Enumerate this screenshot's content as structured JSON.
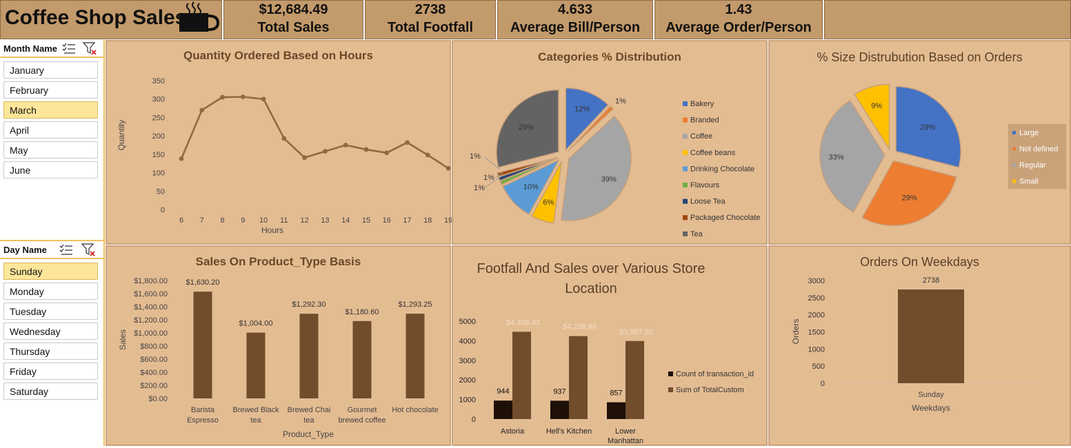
{
  "header": {
    "title": "Coffee Shop Sales",
    "kpis": [
      {
        "value": "$12,684.49",
        "label": "Total Sales"
      },
      {
        "value": "2738",
        "label": "Total Footfall"
      },
      {
        "value": "4.633",
        "label": "Average Bill/Person"
      },
      {
        "value": "1.43",
        "label": "Average Order/Person"
      }
    ]
  },
  "slicers": {
    "month": {
      "title": "Month Name",
      "items": [
        "January",
        "February",
        "March",
        "April",
        "May",
        "June"
      ],
      "selected": "March"
    },
    "day": {
      "title": "Day Name",
      "items": [
        "Sunday",
        "Monday",
        "Tuesday",
        "Wednesday",
        "Thursday",
        "Friday",
        "Saturday"
      ],
      "selected": "Sunday"
    }
  },
  "colors": {
    "brown": "#724d2c",
    "line": "#936845",
    "dark": "#1e1008",
    "panel": "#e4bc92"
  },
  "chart_data": [
    {
      "id": "hours",
      "type": "line",
      "title": "Quantity Ordered Based on Hours",
      "xlabel": "Hours",
      "ylabel": "Quantity",
      "x": [
        6,
        7,
        8,
        9,
        10,
        11,
        12,
        13,
        14,
        15,
        16,
        17,
        18,
        19
      ],
      "values": [
        138,
        270,
        305,
        306,
        300,
        193,
        141,
        158,
        175,
        163,
        154,
        182,
        148,
        112
      ],
      "ylim": [
        0,
        350
      ],
      "yticks": [
        "0",
        "50",
        "100",
        "150",
        "200",
        "250",
        "300",
        "350"
      ]
    },
    {
      "id": "categories",
      "type": "pie",
      "title": "Categories % Distribution",
      "labels": [
        "Bakery",
        "Branded",
        "Coffee",
        "Coffee beans",
        "Drinking Chocolate",
        "Flavours",
        "Loose Tea",
        "Packaged Chocolate",
        "Tea"
      ],
      "values": [
        12,
        1,
        39,
        6,
        10,
        1,
        1,
        1,
        29
      ],
      "value_labels": [
        "12%",
        "1%",
        "39%",
        "6%",
        "10%",
        "1%",
        "1%",
        "1%",
        "29%"
      ],
      "colors": [
        "#4472c4",
        "#ed7d31",
        "#a5a5a5",
        "#ffc000",
        "#5b9bd5",
        "#70ad47",
        "#264478",
        "#9e480e",
        "#636363"
      ]
    },
    {
      "id": "sizes",
      "type": "pie",
      "title": "% Size Distrubution Based on Orders",
      "labels": [
        "Large",
        "Not defined",
        "Regular",
        "Small"
      ],
      "values": [
        29,
        29,
        33,
        9
      ],
      "value_labels": [
        "29%",
        "29%",
        "33%",
        "9%"
      ],
      "colors": [
        "#4472c4",
        "#ed7d31",
        "#a5a5a5",
        "#ffc000"
      ]
    },
    {
      "id": "product_type",
      "type": "bar",
      "title": "Sales On Product_Type Basis",
      "xlabel": "Product_Type",
      "ylabel": "Sales",
      "categories": [
        "Barista Espresso",
        "Brewed Black tea",
        "Brewed Chai tea",
        "Gourmet brewed coffee",
        "Hot chocolate"
      ],
      "values": [
        1630.2,
        1004.0,
        1292.3,
        1180.6,
        1293.25
      ],
      "value_labels": [
        "$1,630.20",
        "$1,004.00",
        "$1,292.30",
        "$1,180.60",
        "$1,293.25"
      ],
      "ylim": [
        0,
        1800
      ],
      "yticks": [
        "$0.00",
        "$200.00",
        "$400.00",
        "$600.00",
        "$800.00",
        "$1,000.00",
        "$1,200.00",
        "$1,400.00",
        "$1,600.00",
        "$1,800.00"
      ]
    },
    {
      "id": "store",
      "type": "bar",
      "title": "Footfall And Sales over Various Store Location",
      "categories": [
        "Astoria",
        "Hell's Kitchen",
        "Lower Manhattan"
      ],
      "series": [
        {
          "name": "Count of transaction_id",
          "values": [
            944,
            937,
            857
          ],
          "value_labels": [
            "944",
            "937",
            "857"
          ]
        },
        {
          "name": "Sum of TotalCustom",
          "values": [
            4458.43,
            4238.86,
            3987.2
          ],
          "value_labels": [
            "$4,458.43",
            "$4,238.86",
            "$3,987.20"
          ]
        }
      ],
      "ylim": [
        0,
        5000
      ],
      "yticks": [
        "0",
        "1000",
        "2000",
        "3000",
        "4000",
        "5000"
      ]
    },
    {
      "id": "weekdays",
      "type": "bar",
      "title": "Orders On Weekdays",
      "xlabel": "Weekdays",
      "ylabel": "Orders",
      "categories": [
        "Sunday"
      ],
      "values": [
        2738
      ],
      "value_labels": [
        "2738"
      ],
      "ylim": [
        0,
        3000
      ],
      "yticks": [
        "0",
        "500",
        "1000",
        "1500",
        "2000",
        "2500",
        "3000"
      ]
    }
  ]
}
